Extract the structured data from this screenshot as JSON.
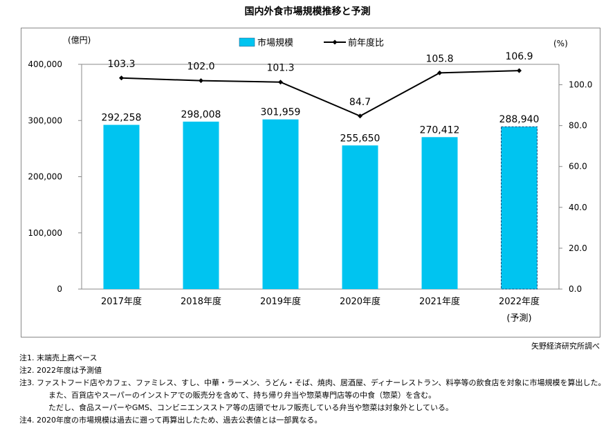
{
  "chart_data": {
    "type": "bar+line",
    "title": "国内外食市場規模推移と予測",
    "categories": [
      "2017年度",
      "2018年度",
      "2019年度",
      "2020年度",
      "2021年度",
      "2022年度"
    ],
    "category_sublabels": [
      "",
      "",
      "",
      "",
      "",
      "(予測)"
    ],
    "series": [
      {
        "name": "市場規模",
        "type": "bar",
        "axis": "left",
        "values": [
          292258,
          298008,
          301959,
          255650,
          270412,
          288940
        ],
        "labels": [
          "292,258",
          "298,008",
          "301,959",
          "255,650",
          "270,412",
          "288,940"
        ],
        "color": "#00c4f0",
        "forecast_index": 5
      },
      {
        "name": "前年度比",
        "type": "line",
        "axis": "right",
        "values": [
          103.3,
          102.0,
          101.3,
          84.7,
          105.8,
          106.9
        ],
        "labels": [
          "103.3",
          "102.0",
          "101.3",
          "84.7",
          "105.8",
          "106.9"
        ],
        "color": "#000000"
      }
    ],
    "left_axis": {
      "unit": "(億円)",
      "ylim": [
        0,
        400000
      ],
      "ticks": [
        "0",
        "100,000",
        "200,000",
        "300,000",
        "400,000"
      ]
    },
    "right_axis": {
      "unit": "(%)",
      "ylim": [
        0,
        110
      ],
      "ticks": [
        "0.0",
        "20.0",
        "40.0",
        "60.0",
        "80.0",
        "100.0"
      ]
    },
    "legend": "top-center",
    "grid": false
  },
  "source": "矢野経済研究所調べ",
  "notes": [
    "注1.  末端売上高ベース",
    "注2.  2022年度は予測値",
    "注3.  ファストフード店やカフェ、ファミレス、すし、中華・ラーメン、うどん・そば、焼肉、居酒屋、ディナーレストラン、料亭等の飲食店を対象に市場規模を算出した。",
    "また、百貨店やスーパーのインストアでの販売分を含めて、持ち帰り弁当や惣菜専門店等の中食（惣菜）を含む。",
    "ただし、食品スーパーやGMS、コンビニエンスストア等の店頭でセルフ販売している弁当や惣菜は対象外としている。",
    "注4.  2020年度の市場規模は過去に遡って再算出したため、過去公表値とは一部異なる。"
  ]
}
